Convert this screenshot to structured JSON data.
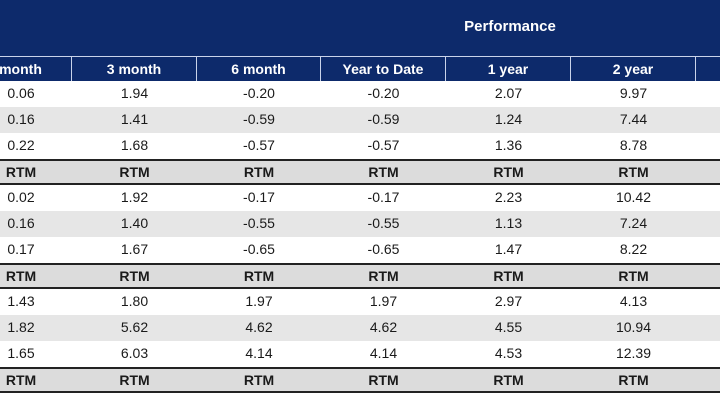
{
  "header": {
    "group_title": "Performance",
    "columns": [
      "month",
      "3 month",
      "6 month",
      "Year to Date",
      "1 year",
      "2 year"
    ]
  },
  "rows": [
    {
      "type": "data",
      "cells": [
        "0.06",
        "1.94",
        "-0.20",
        "-0.20",
        "2.07",
        "9.97"
      ]
    },
    {
      "type": "data",
      "cells": [
        "0.16",
        "1.41",
        "-0.59",
        "-0.59",
        "1.24",
        "7.44"
      ]
    },
    {
      "type": "data",
      "cells": [
        "0.22",
        "1.68",
        "-0.57",
        "-0.57",
        "1.36",
        "8.78"
      ]
    },
    {
      "type": "rtm",
      "cells": [
        "RTM",
        "RTM",
        "RTM",
        "RTM",
        "RTM",
        "RTM"
      ]
    },
    {
      "type": "data",
      "cells": [
        "0.02",
        "1.92",
        "-0.17",
        "-0.17",
        "2.23",
        "10.42"
      ]
    },
    {
      "type": "data",
      "cells": [
        "0.16",
        "1.40",
        "-0.55",
        "-0.55",
        "1.13",
        "7.24"
      ]
    },
    {
      "type": "data",
      "cells": [
        "0.17",
        "1.67",
        "-0.65",
        "-0.65",
        "1.47",
        "8.22"
      ]
    },
    {
      "type": "rtm",
      "cells": [
        "RTM",
        "RTM",
        "RTM",
        "RTM",
        "RTM",
        "RTM"
      ]
    },
    {
      "type": "data",
      "cells": [
        "1.43",
        "1.80",
        "1.97",
        "1.97",
        "2.97",
        "4.13"
      ]
    },
    {
      "type": "data",
      "cells": [
        "1.82",
        "5.62",
        "4.62",
        "4.62",
        "4.55",
        "10.94"
      ]
    },
    {
      "type": "data",
      "cells": [
        "1.65",
        "6.03",
        "4.14",
        "4.14",
        "4.53",
        "12.39"
      ]
    },
    {
      "type": "rtm",
      "cells": [
        "RTM",
        "RTM",
        "RTM",
        "RTM",
        "RTM",
        "RTM"
      ]
    }
  ],
  "colors": {
    "header_bg": "#0d2a6b",
    "alt_row_bg": "#e6e6e6",
    "rtm_row_bg": "#dcdcdc"
  }
}
